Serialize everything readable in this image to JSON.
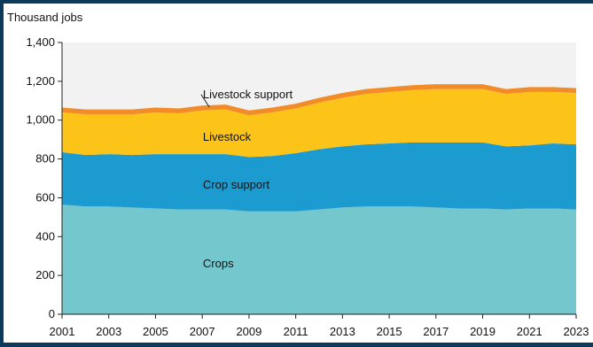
{
  "chart_data": {
    "type": "area",
    "stacked": true,
    "ylabel": "Thousand jobs",
    "ylim": [
      0,
      1400
    ],
    "yticks": [
      0,
      200,
      400,
      600,
      800,
      1000,
      1200,
      1400
    ],
    "ytick_labels": [
      "0",
      "200",
      "400",
      "600",
      "800",
      "1,000",
      "1,200",
      "1,400"
    ],
    "x": [
      2001,
      2002,
      2003,
      2004,
      2005,
      2006,
      2007,
      2008,
      2009,
      2010,
      2011,
      2012,
      2013,
      2014,
      2015,
      2016,
      2017,
      2018,
      2019,
      2020,
      2021,
      2022,
      2023
    ],
    "xticks": [
      2001,
      2003,
      2005,
      2007,
      2009,
      2011,
      2013,
      2015,
      2017,
      2019,
      2021,
      2023
    ],
    "xtick_labels": [
      "2001",
      "2003",
      "2005",
      "2007",
      "2009",
      "2011",
      "2013",
      "2015",
      "2017",
      "2019",
      "2021",
      "2023"
    ],
    "grid": false,
    "series": [
      {
        "name": "Crops",
        "color": "#74c7cd",
        "values": [
          565,
          555,
          555,
          550,
          545,
          540,
          540,
          540,
          530,
          530,
          530,
          540,
          550,
          555,
          555,
          555,
          550,
          545,
          545,
          540,
          545,
          545,
          540
        ]
      },
      {
        "name": "Crop support",
        "color": "#1b9bd0",
        "values": [
          270,
          265,
          270,
          270,
          280,
          285,
          285,
          285,
          280,
          285,
          300,
          310,
          315,
          320,
          325,
          330,
          335,
          340,
          340,
          325,
          325,
          335,
          335
        ]
      },
      {
        "name": "Livestock",
        "color": "#fcc419",
        "values": [
          205,
          210,
          205,
          210,
          215,
          210,
          225,
          230,
          215,
          225,
          230,
          240,
          250,
          260,
          265,
          270,
          275,
          275,
          275,
          270,
          275,
          265,
          265
        ]
      },
      {
        "name": "Livestock support",
        "color": "#f28c28",
        "values": [
          25,
          25,
          25,
          25,
          25,
          25,
          25,
          25,
          25,
          25,
          25,
          25,
          25,
          25,
          25,
          25,
          25,
          25,
          25,
          25,
          25,
          25,
          25
        ]
      }
    ]
  }
}
